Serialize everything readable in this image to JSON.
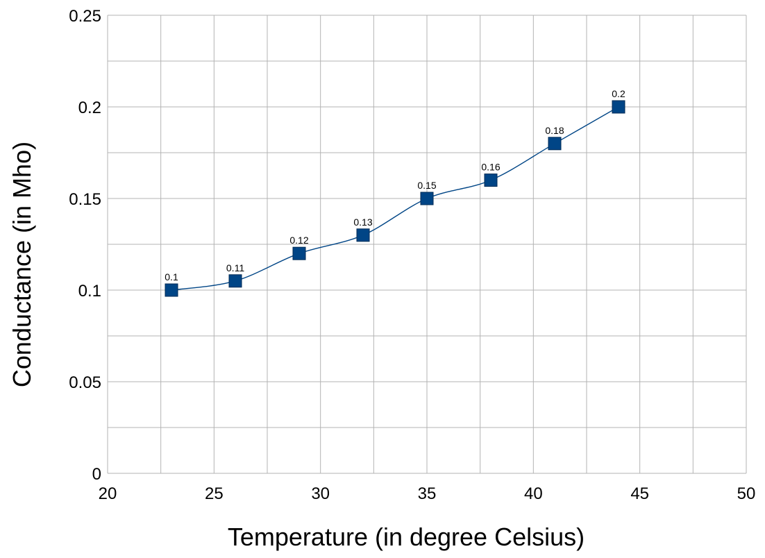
{
  "chart_data": {
    "type": "line",
    "title": "",
    "xlabel": "Temperature (in degree Celsius)",
    "ylabel": "Conductance (in Mho)",
    "xlim": [
      20,
      50
    ],
    "ylim": [
      0,
      0.25
    ],
    "x_ticks": [
      "20",
      "25",
      "30",
      "35",
      "40",
      "45",
      "50"
    ],
    "y_ticks": [
      "0",
      "0.05",
      "0.1",
      "0.15",
      "0.2",
      "0.25"
    ],
    "grid": true,
    "smooth": true,
    "marker": "square",
    "series": [
      {
        "x": [
          23,
          26,
          29,
          32,
          35,
          38,
          41,
          44
        ],
        "values": [
          0.1,
          0.105,
          0.12,
          0.13,
          0.15,
          0.16,
          0.18,
          0.2
        ],
        "data_labels": [
          "0.1",
          "0.11",
          "0.12",
          "0.13",
          "0.15",
          "0.16",
          "0.18",
          "0.2"
        ],
        "color": "#004586"
      }
    ]
  }
}
